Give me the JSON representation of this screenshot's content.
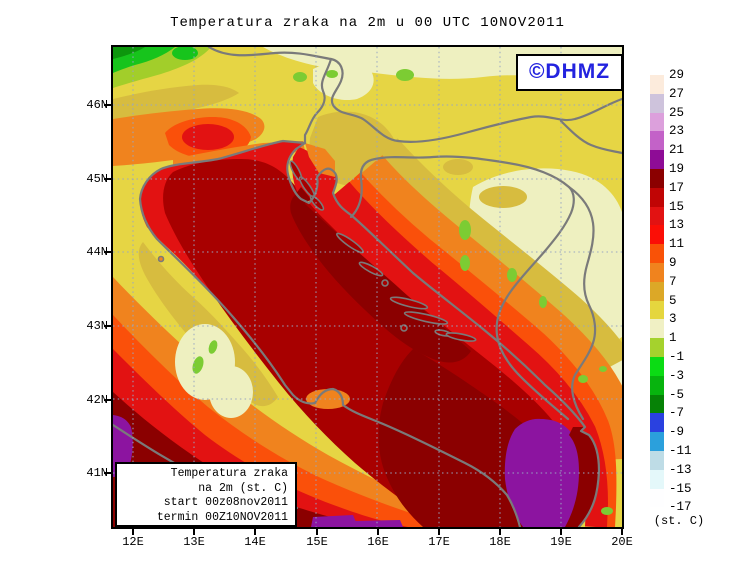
{
  "title": "Temperatura zraka na 2m u 00 UTC 10NOV2011",
  "watermark": {
    "label": "©DHMZ",
    "color": "#2323DF"
  },
  "legend_box": {
    "lines": [
      "Temperatura zraka",
      "na 2m (st. C)",
      "start 00z08nov2011",
      "termin 00Z10NOV2011"
    ]
  },
  "axes": {
    "x_labels": [
      "12E",
      "13E",
      "14E",
      "15E",
      "16E",
      "17E",
      "18E",
      "19E",
      "20E"
    ],
    "y_labels": [
      "46N",
      "45N",
      "44N",
      "43N",
      "42N",
      "41N"
    ]
  },
  "colorbar": {
    "unit": "(st. C)",
    "levels": [
      29,
      27,
      25,
      23,
      21,
      19,
      17,
      15,
      13,
      11,
      9,
      7,
      5,
      3,
      1,
      -1,
      -3,
      -5,
      -7,
      -9,
      -11,
      -13,
      -15,
      -17
    ],
    "colors": [
      "#FCEBDC",
      "#CEC3DC",
      "#DCA0DC",
      "#C362C8",
      "#8E0C96",
      "#8B0000",
      "#C00505",
      "#E21212",
      "#FB0E06",
      "#F95207",
      "#F0831E",
      "#DCA827",
      "#E5D63E",
      "#F0F0C4",
      "#A5D22D",
      "#0BDC14",
      "#07B40E",
      "#068206",
      "#2A41E0",
      "#2BA0DC",
      "#BEDCE6",
      "#E4F8FA",
      "#FEFEFF"
    ]
  },
  "map_palette": {
    "land_yellow": "#E6D544",
    "pale_yellow_green": "#EEF0C0",
    "khaki": "#D7BC3F",
    "orange": "#F0831E",
    "orange_red": "#FA500A",
    "red": "#E21212",
    "dark_red": "#A80000",
    "darkest_red": "#8B0000",
    "purple": "#8C14A0",
    "green_light": "#7CCC33",
    "green_bright": "#17C41C",
    "green_dark": "#0D960D",
    "border_gray": "#7A7A7A",
    "grid_blue": "#98A6C2"
  }
}
